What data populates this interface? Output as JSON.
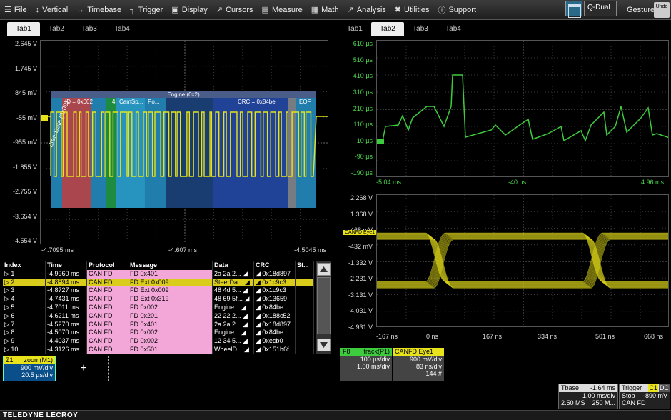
{
  "menu": {
    "items": [
      {
        "name": "file",
        "icon": "file-icon",
        "glyph": "☰",
        "label": "File"
      },
      {
        "name": "vertical",
        "icon": "vertical-icon",
        "glyph": "↕",
        "label": "Vertical"
      },
      {
        "name": "timebase",
        "icon": "timebase-icon",
        "glyph": "↔",
        "label": "Timebase"
      },
      {
        "name": "trigger",
        "icon": "trigger-icon",
        "glyph": "┐",
        "label": "Trigger"
      },
      {
        "name": "display",
        "icon": "display-icon",
        "glyph": "▣",
        "label": "Display"
      },
      {
        "name": "cursors",
        "icon": "cursors-icon",
        "glyph": "↗",
        "label": "Cursors"
      },
      {
        "name": "measure",
        "icon": "measure-icon",
        "glyph": "▤",
        "label": "Measure"
      },
      {
        "name": "math",
        "icon": "math-icon",
        "glyph": "▦",
        "label": "Math"
      },
      {
        "name": "analysis",
        "icon": "analysis-icon",
        "glyph": "↗",
        "label": "Analysis"
      },
      {
        "name": "utilities",
        "icon": "utilities-icon",
        "glyph": "✖",
        "label": "Utilities"
      },
      {
        "name": "support",
        "icon": "support-icon",
        "glyph": "ⓘ",
        "label": "Support"
      }
    ],
    "layout_label": "Q-Dual",
    "gesture_label": "Gesture",
    "undo_label": "Undo"
  },
  "left_tabs": [
    "Tab1",
    "Tab2",
    "Tab3",
    "Tab4"
  ],
  "right_tabs": [
    "Tab1",
    "Tab2",
    "Tab3",
    "Tab4"
  ],
  "left_plot": {
    "y_labels": [
      "2.645 V",
      "1.745 V",
      "845 mV",
      "-55 mV",
      "-955 mV",
      "-1.855 V",
      "-2.755 V",
      "-3.654 V",
      "-4.554 V"
    ],
    "x_labels": [
      "-4.7095 ms",
      "-4.607 ms",
      "-4.5045 ms"
    ],
    "decode_header": "Engine (0x2)",
    "decode_fields": [
      "ID = 0x002",
      "4",
      "CamSp...",
      "Po...",
      "CRC = 0x84be",
      "EOF"
    ],
    "rotated_label": "SteerData (0x09)"
  },
  "right_top_plot": {
    "y_labels": [
      "610 µs",
      "510 µs",
      "410 µs",
      "310 µs",
      "210 µs",
      "110 µs",
      "10 µs",
      "-90 µs",
      "-190 µs"
    ],
    "x_labels": [
      "-5.04 ms",
      "-40 µs",
      "4.96 ms"
    ],
    "marker": "F8"
  },
  "right_bottom_plot": {
    "y_labels": [
      "2.268 V",
      "1.368 V",
      "468 mV",
      "-432 mV",
      "-1.332 V",
      "-2.231 V",
      "-3.131 V",
      "-4.031 V",
      "-4.931 V"
    ],
    "x_labels": [
      "-167 ns",
      "0 ns",
      "167 ns",
      "334 ns",
      "501 ns",
      "668 ns"
    ],
    "tag": "CANFD Eye1"
  },
  "table": {
    "headers": [
      "Index",
      "Time",
      "Protocol",
      "Message",
      "Data",
      "CRC",
      "St..."
    ],
    "rows": [
      {
        "index": "1",
        "time": "-4.9960 ms",
        "protocol": "CAN FD",
        "message": "FD 0x401",
        "data": "2a 2a 2...",
        "crc": "0x18d897"
      },
      {
        "index": "2",
        "time": "-4.8894 ms",
        "protocol": "CAN FD",
        "message": "FD Ext 0x009",
        "data": "SteerDa...",
        "crc": "0x1c9c3"
      },
      {
        "index": "3",
        "time": "-4.8727 ms",
        "protocol": "CAN FD",
        "message": "FD Ext 0x009",
        "data": "48 4d 5...",
        "crc": "0x1c9c3"
      },
      {
        "index": "4",
        "time": "-4.7431 ms",
        "protocol": "CAN FD",
        "message": "FD Ext 0x319",
        "data": "48 69 5f...",
        "crc": "0x13659"
      },
      {
        "index": "5",
        "time": "-4.7011 ms",
        "protocol": "CAN FD",
        "message": "FD 0x002",
        "data": "Engine...",
        "crc": "0x84be"
      },
      {
        "index": "6",
        "time": "-4.6211 ms",
        "protocol": "CAN FD",
        "message": "FD 0x201",
        "data": "22 22 2...",
        "crc": "0x188c52"
      },
      {
        "index": "7",
        "time": "-4.5270 ms",
        "protocol": "CAN FD",
        "message": "FD 0x401",
        "data": "2a 2a 2...",
        "crc": "0x18d897"
      },
      {
        "index": "8",
        "time": "-4.5070 ms",
        "protocol": "CAN FD",
        "message": "FD 0x002",
        "data": "Engine...",
        "crc": "0x84be"
      },
      {
        "index": "9",
        "time": "-4.4037 ms",
        "protocol": "CAN FD",
        "message": "FD 0x002",
        "data": "12 34 5...",
        "crc": "0xecb0"
      },
      {
        "index": "10",
        "time": "-4.3126 ms",
        "protocol": "CAN FD",
        "message": "FD 0x501",
        "data": "WheelD...",
        "crc": "0x151b6f"
      }
    ],
    "selected": 1
  },
  "z1": {
    "tag": "Z1",
    "title": "zoom(M1)",
    "vdiv": "900 mV/div",
    "tdiv": "20.5 µs/div"
  },
  "add_label": "+",
  "f8": {
    "tag": "F8",
    "title": "track(P1)",
    "vdiv": "100 µs/div",
    "tdiv": "1.00 ms/div"
  },
  "eye": {
    "title": "CANFD Eye1",
    "vdiv": "900 mV/div",
    "tdiv": "83 ns/div",
    "count": "144 #"
  },
  "tbase": {
    "label": "Tbase",
    "offset": "-1.64 ms",
    "tdiv": "1.00 ms/div",
    "samples": "2.50 MS",
    "rate": "250 M..."
  },
  "trigger": {
    "label": "Trigger",
    "c1": "C1",
    "dc": "DC",
    "mode": "Stop",
    "level": "-890 mV",
    "type": "CAN FD"
  },
  "brand": "TELEDYNE LECROY",
  "colors": {
    "yellow": "#e8e31a",
    "green": "#3dcc3d",
    "accent": "#e0d41c"
  }
}
